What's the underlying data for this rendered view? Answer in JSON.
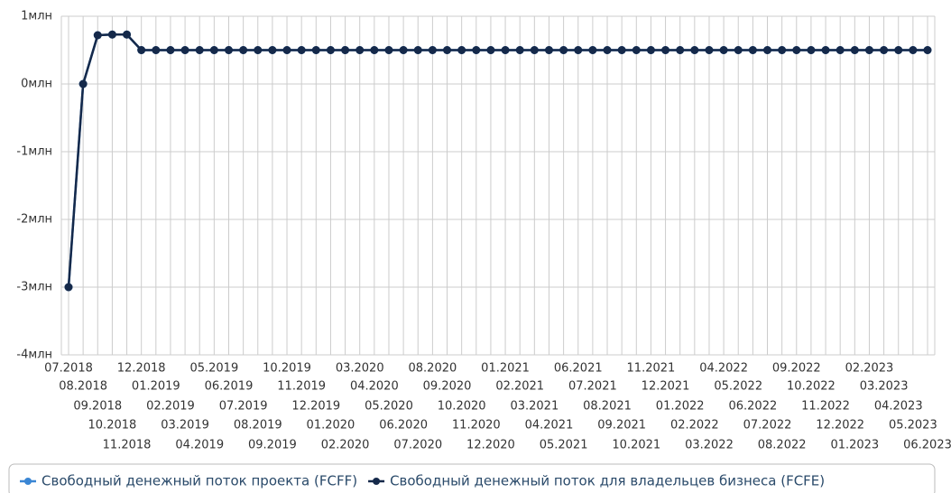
{
  "chart_data": {
    "type": "line",
    "categories": [
      "07.2018",
      "08.2018",
      "09.2018",
      "10.2018",
      "11.2018",
      "12.2018",
      "01.2019",
      "02.2019",
      "03.2019",
      "04.2019",
      "05.2019",
      "06.2019",
      "07.2019",
      "08.2019",
      "09.2019",
      "10.2019",
      "11.2019",
      "12.2019",
      "01.2020",
      "02.2020",
      "03.2020",
      "04.2020",
      "05.2020",
      "06.2020",
      "07.2020",
      "08.2020",
      "09.2020",
      "10.2020",
      "11.2020",
      "12.2020",
      "01.2021",
      "02.2021",
      "03.2021",
      "04.2021",
      "05.2021",
      "06.2021",
      "07.2021",
      "08.2021",
      "09.2021",
      "10.2021",
      "11.2021",
      "12.2021",
      "01.2022",
      "02.2022",
      "03.2022",
      "04.2022",
      "05.2022",
      "06.2022",
      "07.2022",
      "08.2022",
      "09.2022",
      "10.2022",
      "11.2022",
      "12.2022",
      "01.2023",
      "02.2023",
      "03.2023",
      "04.2023",
      "05.2023",
      "06.2023"
    ],
    "series": [
      {
        "name": "Свободный денежный поток проекта (FCFF)",
        "color": "#3a86d4",
        "values": [
          -3,
          0,
          0.72,
          0.73,
          0.73,
          0.5,
          0.5,
          0.5,
          0.5,
          0.5,
          0.5,
          0.5,
          0.5,
          0.5,
          0.5,
          0.5,
          0.5,
          0.5,
          0.5,
          0.5,
          0.5,
          0.5,
          0.5,
          0.5,
          0.5,
          0.5,
          0.5,
          0.5,
          0.5,
          0.5,
          0.5,
          0.5,
          0.5,
          0.5,
          0.5,
          0.5,
          0.5,
          0.5,
          0.5,
          0.5,
          0.5,
          0.5,
          0.5,
          0.5,
          0.5,
          0.5,
          0.5,
          0.5,
          0.5,
          0.5,
          0.5,
          0.5,
          0.5,
          0.5,
          0.5,
          0.5,
          0.5,
          0.5,
          0.5,
          0.5
        ]
      },
      {
        "name": "Свободный денежный поток для владельцев бизнеса (FCFE)",
        "color": "#15294a",
        "values": [
          -3,
          0,
          0.72,
          0.73,
          0.73,
          0.5,
          0.5,
          0.5,
          0.5,
          0.5,
          0.5,
          0.5,
          0.5,
          0.5,
          0.5,
          0.5,
          0.5,
          0.5,
          0.5,
          0.5,
          0.5,
          0.5,
          0.5,
          0.5,
          0.5,
          0.5,
          0.5,
          0.5,
          0.5,
          0.5,
          0.5,
          0.5,
          0.5,
          0.5,
          0.5,
          0.5,
          0.5,
          0.5,
          0.5,
          0.5,
          0.5,
          0.5,
          0.5,
          0.5,
          0.5,
          0.5,
          0.5,
          0.5,
          0.5,
          0.5,
          0.5,
          0.5,
          0.5,
          0.5,
          0.5,
          0.5,
          0.5,
          0.5,
          0.5,
          0.5
        ]
      }
    ],
    "ylim": [
      -4,
      1
    ],
    "yticks": [
      {
        "value": -4,
        "label": "-4млн"
      },
      {
        "value": -3,
        "label": "-3млн"
      },
      {
        "value": -2,
        "label": "-2млн"
      },
      {
        "value": -1,
        "label": "-1млн"
      },
      {
        "value": 0,
        "label": "0млн"
      },
      {
        "value": 1,
        "label": "1млн"
      }
    ],
    "grid": true
  }
}
